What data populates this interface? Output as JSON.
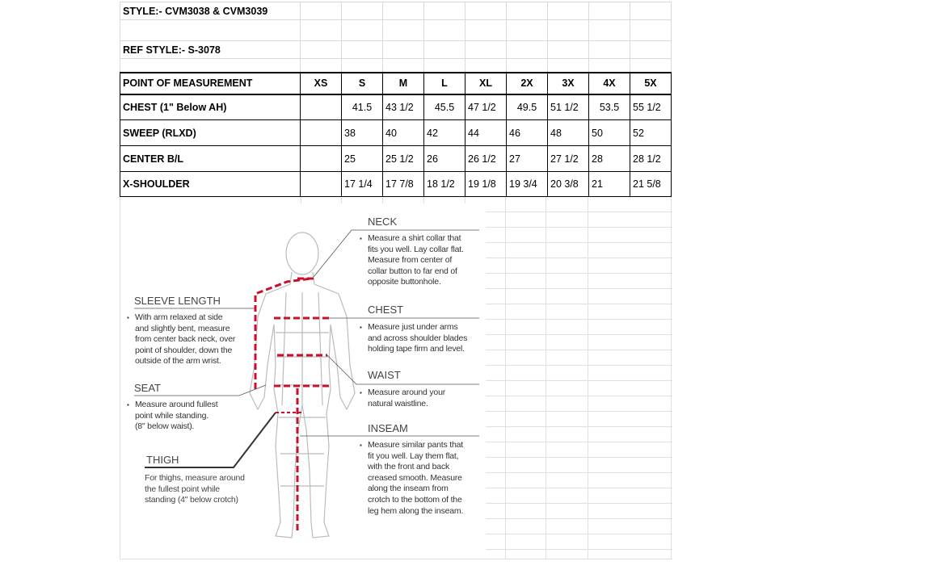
{
  "header": {
    "style": "STYLE:- CVM3038 & CVM3039",
    "ref_style": "REF STYLE:- S-3078"
  },
  "table": {
    "columns": [
      "POINT OF MEASUREMENT",
      "XS",
      "S",
      "M",
      "L",
      "XL",
      "2X",
      "3X",
      "4X",
      "5X"
    ],
    "rows": [
      [
        "CHEST (1\" Below AH)",
        "",
        "41.5",
        "43 1/2",
        "45.5",
        "47 1/2",
        "49.5",
        "51 1/2",
        "53.5",
        "55 1/2"
      ],
      [
        "SWEEP (RLXD)",
        "",
        "38",
        "40",
        "42",
        "44",
        "46",
        "48",
        "50",
        "52"
      ],
      [
        "CENTER B/L",
        "",
        "25",
        "25 1/2",
        "26",
        "26 1/2",
        "27",
        "27 1/2",
        "28",
        "28 1/2"
      ],
      [
        "X-SHOULDER",
        "",
        "17 1/4",
        "17 7/8",
        "18 1/2",
        "19 1/8",
        "19 3/4",
        "20 3/8",
        "21",
        "21 5/8"
      ]
    ]
  },
  "diagram": {
    "neck": {
      "title": "NECK",
      "lines": [
        "Measure a shirt collar that",
        "fits you well. Lay collar flat.",
        "Measure from center of",
        "collar button to far end of",
        "opposite buttonhole."
      ]
    },
    "chest": {
      "title": "CHEST",
      "lines": [
        "Measure just under arms",
        "and across shoulder blades",
        "holding tape firm and level."
      ]
    },
    "waist": {
      "title": "WAIST",
      "lines": [
        "Measure around your",
        "natural waistline."
      ]
    },
    "inseam": {
      "title": "INSEAM",
      "lines": [
        "Measure similar pants that",
        "fit you well. Lay them flat,",
        "with the front and back",
        "creased smooth. Measure",
        "along the inseam from",
        "crotch to the bottom of the",
        "leg hem along the inseam."
      ]
    },
    "sleeve": {
      "title": "SLEEVE LENGTH",
      "lines": [
        "With arm relaxed at side",
        "and slightly bent, measure",
        "from center back neck, over",
        "point of shoulder, down the",
        "outside of the arm wrist."
      ]
    },
    "seat": {
      "title": "SEAT",
      "lines": [
        "Measure around fullest",
        "point while standing.",
        "(8\" below waist)."
      ]
    },
    "thigh": {
      "title": "THIGH",
      "lines": [
        "For thighs, measure around",
        "the fullest point while",
        "standing (4\" below crotch)"
      ]
    },
    "accent_color": "#c8102e"
  }
}
